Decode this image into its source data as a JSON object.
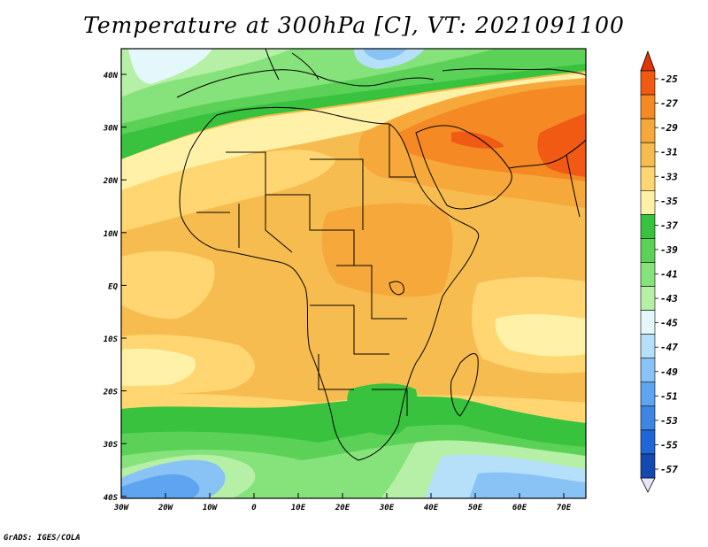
{
  "title": "Temperature at 300hPa [C], VT: 2021091100",
  "credit": "GrADS: IGES/COLA",
  "map": {
    "lat_labels": [
      "40N",
      "30N",
      "20N",
      "10N",
      "EQ",
      "10S",
      "20S",
      "30S",
      "40S"
    ],
    "lon_labels": [
      "30W",
      "20W",
      "10W",
      "0",
      "10E",
      "20E",
      "30E",
      "40E",
      "50E",
      "60E",
      "70E"
    ],
    "lat_range": [
      -40,
      45
    ],
    "lon_range": [
      -30,
      75
    ]
  },
  "colorbar": {
    "colors": [
      "#0d1a6b",
      "#1449b0",
      "#1f66d6",
      "#3d86e4",
      "#5ea4f0",
      "#89c3f6",
      "#b6dffa",
      "#e4f8fb",
      "#b6f0a6",
      "#86e27a",
      "#5bd257",
      "#38c23e",
      "#fff2a8",
      "#ffd671",
      "#f7bc4f",
      "#f6a83b",
      "#f58a25",
      "#f05a12",
      "#e03608"
    ],
    "labels": [
      "-25",
      "-27",
      "-29",
      "-31",
      "-33",
      "-35",
      "-37",
      "-39",
      "-41",
      "-43",
      "-45",
      "-47",
      "-49",
      "-51",
      "-53",
      "-55",
      "-57"
    ]
  }
}
